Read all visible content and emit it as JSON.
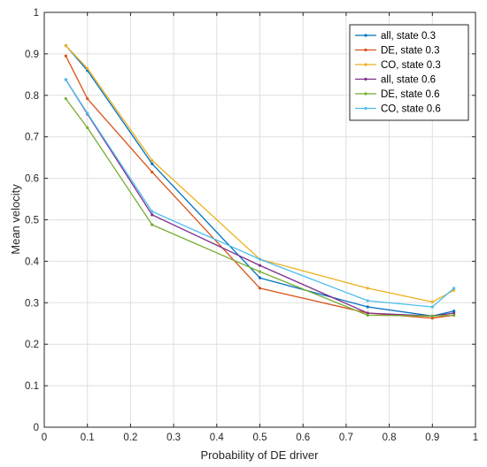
{
  "chart_data": {
    "type": "line",
    "title": "",
    "xlabel": "Probability of DE driver",
    "ylabel": "Mean velocity",
    "xlim": [
      0,
      1
    ],
    "ylim": [
      0,
      1
    ],
    "xticks": [
      "0",
      "0.1",
      "0.2",
      "0.3",
      "0.4",
      "0.5",
      "0.6",
      "0.7",
      "0.8",
      "0.9",
      "1"
    ],
    "yticks": [
      "0",
      "0.1",
      "0.2",
      "0.3",
      "0.4",
      "0.5",
      "0.6",
      "0.7",
      "0.8",
      "0.9",
      "1"
    ],
    "grid": true,
    "legend_position": "top-right",
    "x": [
      0.05,
      0.1,
      0.25,
      0.5,
      0.75,
      0.9,
      0.95
    ],
    "series": [
      {
        "name": "all, state 0.3",
        "color": "#0072BD",
        "values": [
          0.92,
          0.86,
          0.635,
          0.36,
          0.29,
          0.268,
          0.28
        ]
      },
      {
        "name": "DE, state 0.3",
        "color": "#D95319",
        "values": [
          0.895,
          0.792,
          0.615,
          0.335,
          0.275,
          0.263,
          0.27
        ]
      },
      {
        "name": "CO, state 0.3",
        "color": "#EDB120",
        "values": [
          0.92,
          0.865,
          0.643,
          0.405,
          0.335,
          0.302,
          0.33
        ]
      },
      {
        "name": "all, state 0.6",
        "color": "#7E2F8E",
        "values": [
          0.838,
          0.755,
          0.512,
          0.39,
          0.275,
          0.268,
          0.275
        ]
      },
      {
        "name": "DE, state 0.6",
        "color": "#77AC30",
        "values": [
          0.792,
          0.722,
          0.488,
          0.375,
          0.27,
          0.268,
          0.27
        ]
      },
      {
        "name": "CO, state 0.6",
        "color": "#4DBEEE",
        "values": [
          0.838,
          0.757,
          0.52,
          0.405,
          0.305,
          0.29,
          0.335
        ]
      }
    ]
  }
}
